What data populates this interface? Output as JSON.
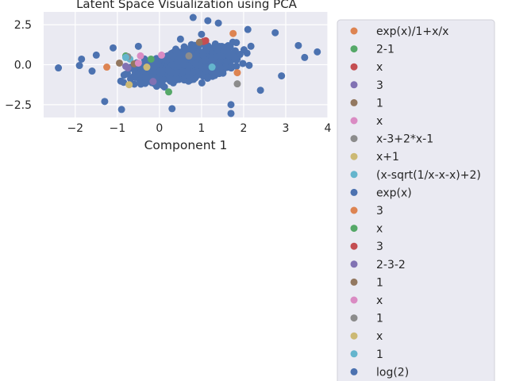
{
  "chart_data": {
    "type": "scatter",
    "title": "Latent Space Visualization using PCA",
    "xlabel": "Component 1",
    "ylabel": "",
    "xlim": [
      -2.75,
      4.0
    ],
    "ylim": [
      -3.3,
      3.3
    ],
    "xticks": [
      -2,
      -1,
      0,
      1,
      2,
      3,
      4
    ],
    "xtick_labels": [
      "−2",
      "−1",
      "0",
      "1",
      "2",
      "3",
      "4"
    ],
    "yticks": [
      -2.5,
      0.0,
      2.5
    ],
    "ytick_labels": [
      "−2.5",
      "0.0",
      "2.5"
    ],
    "grid": true,
    "legend_placement": "outside-right",
    "background_cloud": {
      "color": "#4c72b0",
      "description_points": [
        [
          -2.4,
          -0.2
        ],
        [
          -1.9,
          -0.05
        ],
        [
          -1.85,
          0.35
        ],
        [
          -1.6,
          -0.4
        ],
        [
          -1.5,
          0.6
        ],
        [
          -1.3,
          -2.3
        ],
        [
          -0.9,
          -2.8
        ],
        [
          -1.1,
          1.05
        ],
        [
          0.8,
          2.95
        ],
        [
          1.15,
          2.75
        ],
        [
          1.7,
          -3.05
        ],
        [
          1.7,
          -2.5
        ],
        [
          2.75,
          2.0
        ],
        [
          3.3,
          1.2
        ],
        [
          3.75,
          0.8
        ],
        [
          3.45,
          0.45
        ],
        [
          2.9,
          -0.7
        ],
        [
          2.4,
          -1.6
        ],
        [
          0.3,
          -2.75
        ],
        [
          1.4,
          2.6
        ],
        [
          2.1,
          2.2
        ],
        [
          -0.5,
          1.15
        ],
        [
          0.5,
          1.6
        ],
        [
          1.0,
          1.9
        ]
      ]
    },
    "series": [
      {
        "name": "exp(x)/1+x/x",
        "color": "#dd8452",
        "points": [
          [
            1.75,
            1.95
          ],
          [
            -1.25,
            -0.15
          ]
        ]
      },
      {
        "name": "2-1",
        "color": "#55a868",
        "points": [
          [
            0.22,
            -1.7
          ],
          [
            -0.2,
            0.35
          ]
        ]
      },
      {
        "name": "x",
        "color": "#c44e52",
        "points": [
          [
            1.05,
            1.45
          ]
        ]
      },
      {
        "name": "3",
        "color": "#8172b3",
        "points": [
          [
            -0.15,
            -1.05
          ],
          [
            -0.75,
            -0.2
          ]
        ]
      },
      {
        "name": "1",
        "color": "#937860",
        "points": [
          [
            0.95,
            1.4
          ],
          [
            -0.95,
            0.1
          ]
        ]
      },
      {
        "name": "x",
        "color": "#da8bc3",
        "points": [
          [
            0.05,
            0.6
          ],
          [
            -0.45,
            0.55
          ]
        ]
      },
      {
        "name": "x-3+2*x-1",
        "color": "#8c8c8c",
        "points": [
          [
            1.85,
            -1.2
          ],
          [
            0.7,
            0.55
          ]
        ]
      },
      {
        "name": "x+1",
        "color": "#ccb974",
        "points": [
          [
            -0.3,
            -0.15
          ]
        ]
      },
      {
        "name": "(x-sqrt(1/x-x-x)+2)",
        "color": "#64b5cd",
        "points": [
          [
            1.25,
            -0.15
          ],
          [
            -0.7,
            0.35
          ]
        ]
      },
      {
        "name": "exp(x)",
        "color": "#4c72b0",
        "points": [
          [
            0.5,
            0.2
          ]
        ]
      },
      {
        "name": "3",
        "color": "#dd8452",
        "points": [
          [
            1.85,
            -0.5
          ]
        ]
      },
      {
        "name": "x",
        "color": "#55a868",
        "points": [
          [
            -0.8,
            0.55
          ]
        ]
      },
      {
        "name": "3",
        "color": "#c44e52",
        "points": [
          [
            1.1,
            1.5
          ]
        ]
      },
      {
        "name": "2-3-2",
        "color": "#8172b3",
        "points": [
          [
            -0.8,
            -0.1
          ]
        ]
      },
      {
        "name": "1",
        "color": "#937860",
        "points": [
          [
            -0.6,
            0.05
          ]
        ]
      },
      {
        "name": "x",
        "color": "#da8bc3",
        "points": [
          [
            -0.5,
            0.1
          ]
        ]
      },
      {
        "name": "1",
        "color": "#8c8c8c",
        "points": [
          [
            -0.75,
            0.5
          ]
        ]
      },
      {
        "name": "x",
        "color": "#ccb974",
        "points": [
          [
            -0.72,
            -1.25
          ]
        ]
      },
      {
        "name": "1",
        "color": "#64b5cd",
        "points": [
          [
            -0.8,
            0.45
          ]
        ]
      },
      {
        "name": "log(2)",
        "color": "#4c72b0",
        "points": [
          [
            0.2,
            -0.3
          ]
        ]
      }
    ]
  }
}
